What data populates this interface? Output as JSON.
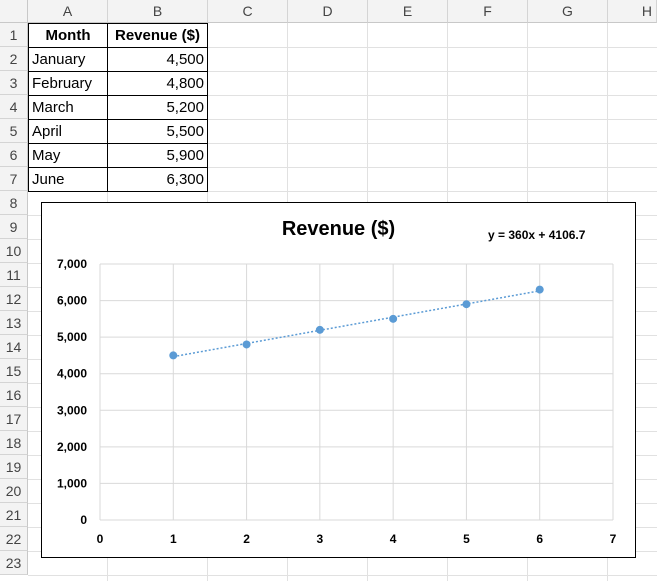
{
  "spreadsheet": {
    "columns": [
      "A",
      "B",
      "C",
      "D",
      "E",
      "F",
      "G",
      "H"
    ],
    "rows": [
      "1",
      "2",
      "3",
      "4",
      "5",
      "6",
      "7",
      "8",
      "9",
      "10",
      "11",
      "12",
      "13",
      "14",
      "15",
      "16",
      "17",
      "18",
      "19",
      "20",
      "21",
      "22",
      "23"
    ],
    "table": {
      "headers": [
        "Month",
        "Revenue ($)"
      ],
      "rows": [
        [
          "January",
          "4,500"
        ],
        [
          "February",
          "4,800"
        ],
        [
          "March",
          "5,200"
        ],
        [
          "April",
          "5,500"
        ],
        [
          "May",
          "5,900"
        ],
        [
          "June",
          "6,300"
        ]
      ]
    }
  },
  "chart_data": {
    "type": "scatter",
    "title": "Revenue ($)",
    "trendline_label": "y = 360x + 4106.7",
    "trendline": {
      "slope": 360,
      "intercept": 4106.7,
      "style": "dotted"
    },
    "x": [
      1,
      2,
      3,
      4,
      5,
      6
    ],
    "y": [
      4500,
      4800,
      5200,
      5500,
      5900,
      6300
    ],
    "xlim": [
      0,
      7
    ],
    "ylim": [
      0,
      7000
    ],
    "x_ticks": [
      "0",
      "1",
      "2",
      "3",
      "4",
      "5",
      "6",
      "7"
    ],
    "y_ticks": [
      "0",
      "1,000",
      "2,000",
      "3,000",
      "4,000",
      "5,000",
      "6,000",
      "7,000"
    ],
    "grid": true,
    "marker_color": "#5b9bd5"
  }
}
